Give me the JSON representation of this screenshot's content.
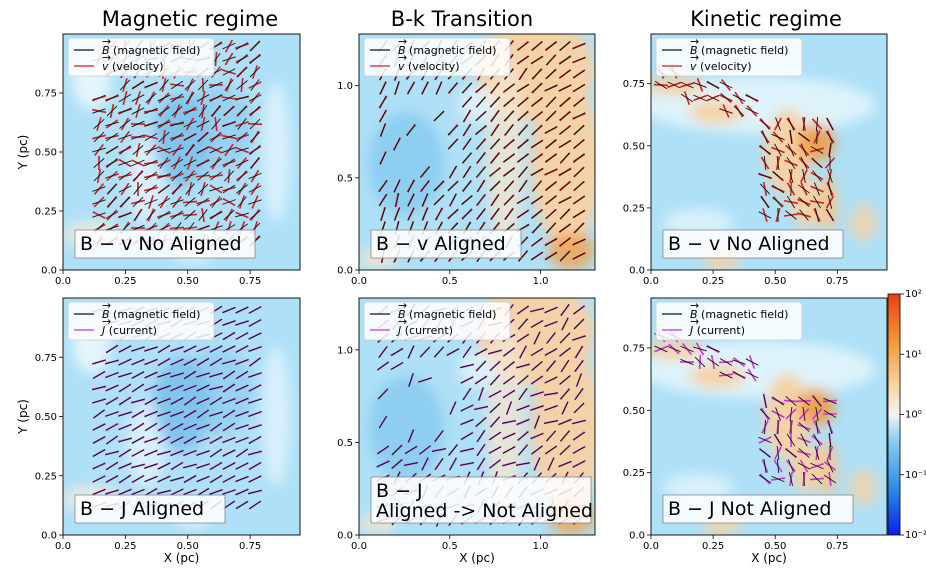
{
  "chart_data": [
    {
      "type": "quiver",
      "title": "Magnetic regime",
      "ylabel": "Y (pc)",
      "xlabel": "",
      "xlim": [
        0,
        0.95
      ],
      "ylim": [
        0,
        1.0
      ],
      "xticks": [
        0.0,
        0.25,
        0.5,
        0.75
      ],
      "yticks": [
        0.0,
        0.25,
        0.5,
        0.75
      ],
      "legend": [
        "B (magnetic field)",
        "v (velocity)"
      ],
      "annotation": "B − v No Aligned",
      "overlay_color": "#cc1f1f"
    },
    {
      "type": "quiver",
      "title": "B-k Transition",
      "ylabel": "",
      "xlabel": "",
      "xlim": [
        0,
        1.3
      ],
      "ylim": [
        0,
        1.28
      ],
      "xticks": [
        0.0,
        0.5,
        1.0
      ],
      "yticks": [
        0.0,
        0.5,
        1.0
      ],
      "legend": [
        "B (magnetic field)",
        "v (velocity)"
      ],
      "annotation": "B − v Aligned",
      "overlay_color": "#cc1f1f"
    },
    {
      "type": "quiver",
      "title": "Kinetic regime",
      "ylabel": "",
      "xlabel": "",
      "xlim": [
        0,
        0.95
      ],
      "ylim": [
        0,
        0.95
      ],
      "xticks": [
        0.0,
        0.25,
        0.5,
        0.75
      ],
      "yticks": [
        0.0,
        0.25,
        0.5,
        0.75
      ],
      "legend": [
        "B (magnetic field)",
        "v (velocity)"
      ],
      "annotation": "B − v No Aligned",
      "overlay_color": "#cc1f1f"
    },
    {
      "type": "quiver",
      "title": "",
      "ylabel": "Y (pc)",
      "xlabel": "X (pc)",
      "xlim": [
        0,
        0.95
      ],
      "ylim": [
        0,
        1.0
      ],
      "xticks": [
        0.0,
        0.25,
        0.5,
        0.75
      ],
      "yticks": [
        0.0,
        0.25,
        0.5,
        0.75
      ],
      "legend": [
        "B (magnetic field)",
        "J (current)"
      ],
      "annotation": "B − J Aligned",
      "overlay_color": "#c933d6"
    },
    {
      "type": "quiver",
      "title": "",
      "ylabel": "",
      "xlabel": "X (pc)",
      "xlim": [
        0,
        1.3
      ],
      "ylim": [
        0,
        1.28
      ],
      "xticks": [
        0.0,
        0.5,
        1.0
      ],
      "yticks": [
        0.0,
        0.5,
        1.0
      ],
      "legend": [
        "B (magnetic field)",
        "J (current)"
      ],
      "annotation": "B − J",
      "annotation_line2": "Aligned -> Not Aligned",
      "overlay_color": "#c933d6"
    },
    {
      "type": "quiver",
      "title": "",
      "ylabel": "",
      "xlabel": "X (pc)",
      "xlim": [
        0,
        0.95
      ],
      "ylim": [
        0,
        0.95
      ],
      "xticks": [
        0.0,
        0.25,
        0.5,
        0.75
      ],
      "yticks": [
        0.0,
        0.25,
        0.5,
        0.75
      ],
      "legend": [
        "B (magnetic field)",
        "J (current)"
      ],
      "annotation": "B − J Not Aligned",
      "overlay_color": "#c933d6"
    }
  ],
  "colorbar": {
    "type": "log",
    "range": [
      0.01,
      100
    ],
    "ticks": [
      "10⁻²",
      "10⁻¹",
      "10⁰",
      "10¹",
      "10²"
    ],
    "colors": [
      "#0a1fe8",
      "#2f8fe6",
      "#7fc6ee",
      "#f4f4f4",
      "#f7d4a0",
      "#f29a3a",
      "#ee3d14"
    ]
  },
  "colors": {
    "background_blue": "#aee0f7",
    "background_orange": "#f8cf98",
    "magnetic_field": "#111111",
    "velocity": "#cc1f1f",
    "current": "#c933d6"
  }
}
